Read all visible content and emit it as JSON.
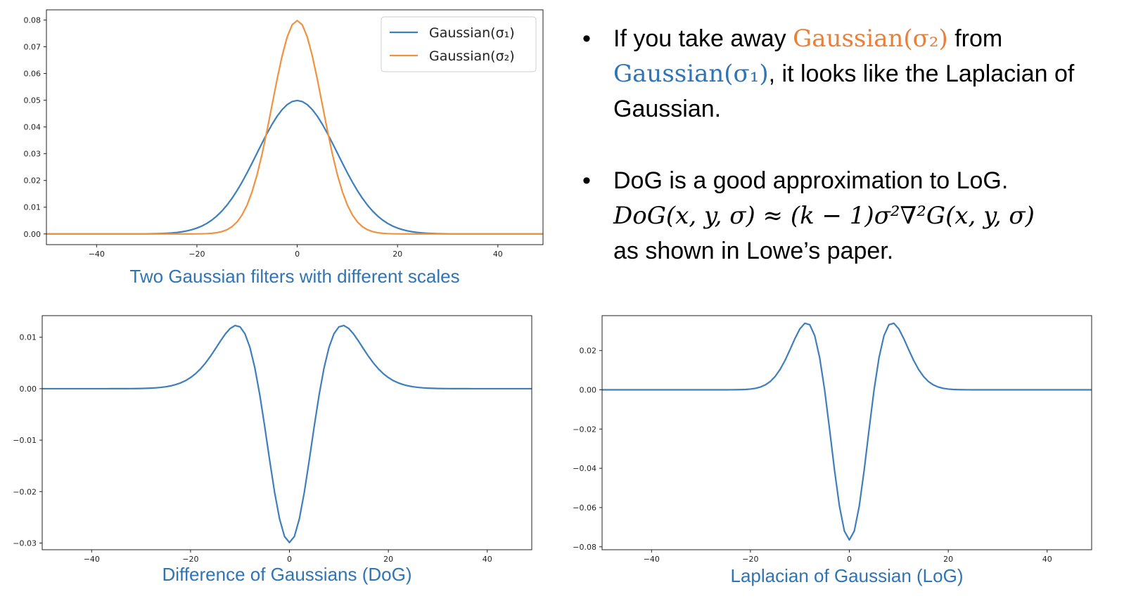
{
  "chart_data": [
    {
      "type": "line",
      "id": "gauss",
      "xlim": [
        -50,
        49
      ],
      "ylim": [
        -0.004,
        0.0838
      ],
      "xticks": [
        -40,
        -20,
        0,
        20,
        40
      ],
      "xtick_labels": [
        "−40",
        "−20",
        "0",
        "20",
        "40"
      ],
      "yticks": [
        0.0,
        0.01,
        0.02,
        0.03,
        0.04,
        0.05,
        0.06,
        0.07,
        0.08
      ],
      "ytick_labels": [
        "0.00",
        "0.01",
        "0.02",
        "0.03",
        "0.04",
        "0.05",
        "0.06",
        "0.07",
        "0.08"
      ],
      "legend": "top-right",
      "grid": false,
      "series": [
        {
          "name": "Gaussian(σ₁)",
          "color": "#3d7ebd",
          "kind": "gaussian",
          "sigma": 8,
          "peak": 0.0499
        },
        {
          "name": "Gaussian(σ₂)",
          "color": "#f0923e",
          "kind": "gaussian",
          "sigma": 5,
          "peak": 0.0798
        }
      ],
      "caption": "Two Gaussian filters with different scales"
    },
    {
      "type": "line",
      "id": "dog",
      "xlim": [
        -50,
        49
      ],
      "ylim": [
        -0.0313,
        0.0142
      ],
      "xticks": [
        -40,
        -20,
        0,
        20,
        40
      ],
      "xtick_labels": [
        "−40",
        "−20",
        "0",
        "20",
        "40"
      ],
      "yticks": [
        0.01,
        0.0,
        -0.01,
        -0.02,
        -0.03
      ],
      "ytick_labels": [
        "0.01",
        "0.00",
        "−0.01",
        "−0.02",
        "−0.03"
      ],
      "grid": false,
      "series": [
        {
          "color": "#3d7ebd",
          "kind": "dog",
          "sigma_a": 8,
          "sigma_b": 5,
          "peak_min": -0.0299
        }
      ],
      "caption": "Difference of Gaussians (DoG)"
    },
    {
      "type": "line",
      "id": "log",
      "xlim": [
        -50,
        49
      ],
      "ylim": [
        -0.0815,
        0.0378
      ],
      "xticks": [
        -40,
        -20,
        0,
        20,
        40
      ],
      "xtick_labels": [
        "−40",
        "−20",
        "0",
        "20",
        "40"
      ],
      "yticks": [
        0.02,
        0.0,
        -0.02,
        -0.04,
        -0.06,
        -0.08
      ],
      "ytick_labels": [
        "0.02",
        "0.00",
        "−0.02",
        "−0.04",
        "−0.06",
        "−0.08"
      ],
      "grid": false,
      "series": [
        {
          "color": "#3d7ebd",
          "kind": "log",
          "sigma": 5,
          "peak_min": -0.0765
        }
      ],
      "caption": "Laplacian of Gaussian (LoG)"
    }
  ],
  "bullets": {
    "b1": {
      "dot": "•",
      "t1": "If you take away ",
      "g2": "Gaussian(σ₂)",
      "t2": " from",
      "g1": "Gaussian(σ₁)",
      "t3": ", it looks like the Laplacian of Gaussian."
    },
    "b2": {
      "dot": "•",
      "t1": "DoG is a good approximation to LoG.",
      "formula": "DoG(x, y, σ) ≈ (k − 1)σ²∇²G(x, y, σ)",
      "t2": "as shown in Lowe’s paper."
    }
  }
}
